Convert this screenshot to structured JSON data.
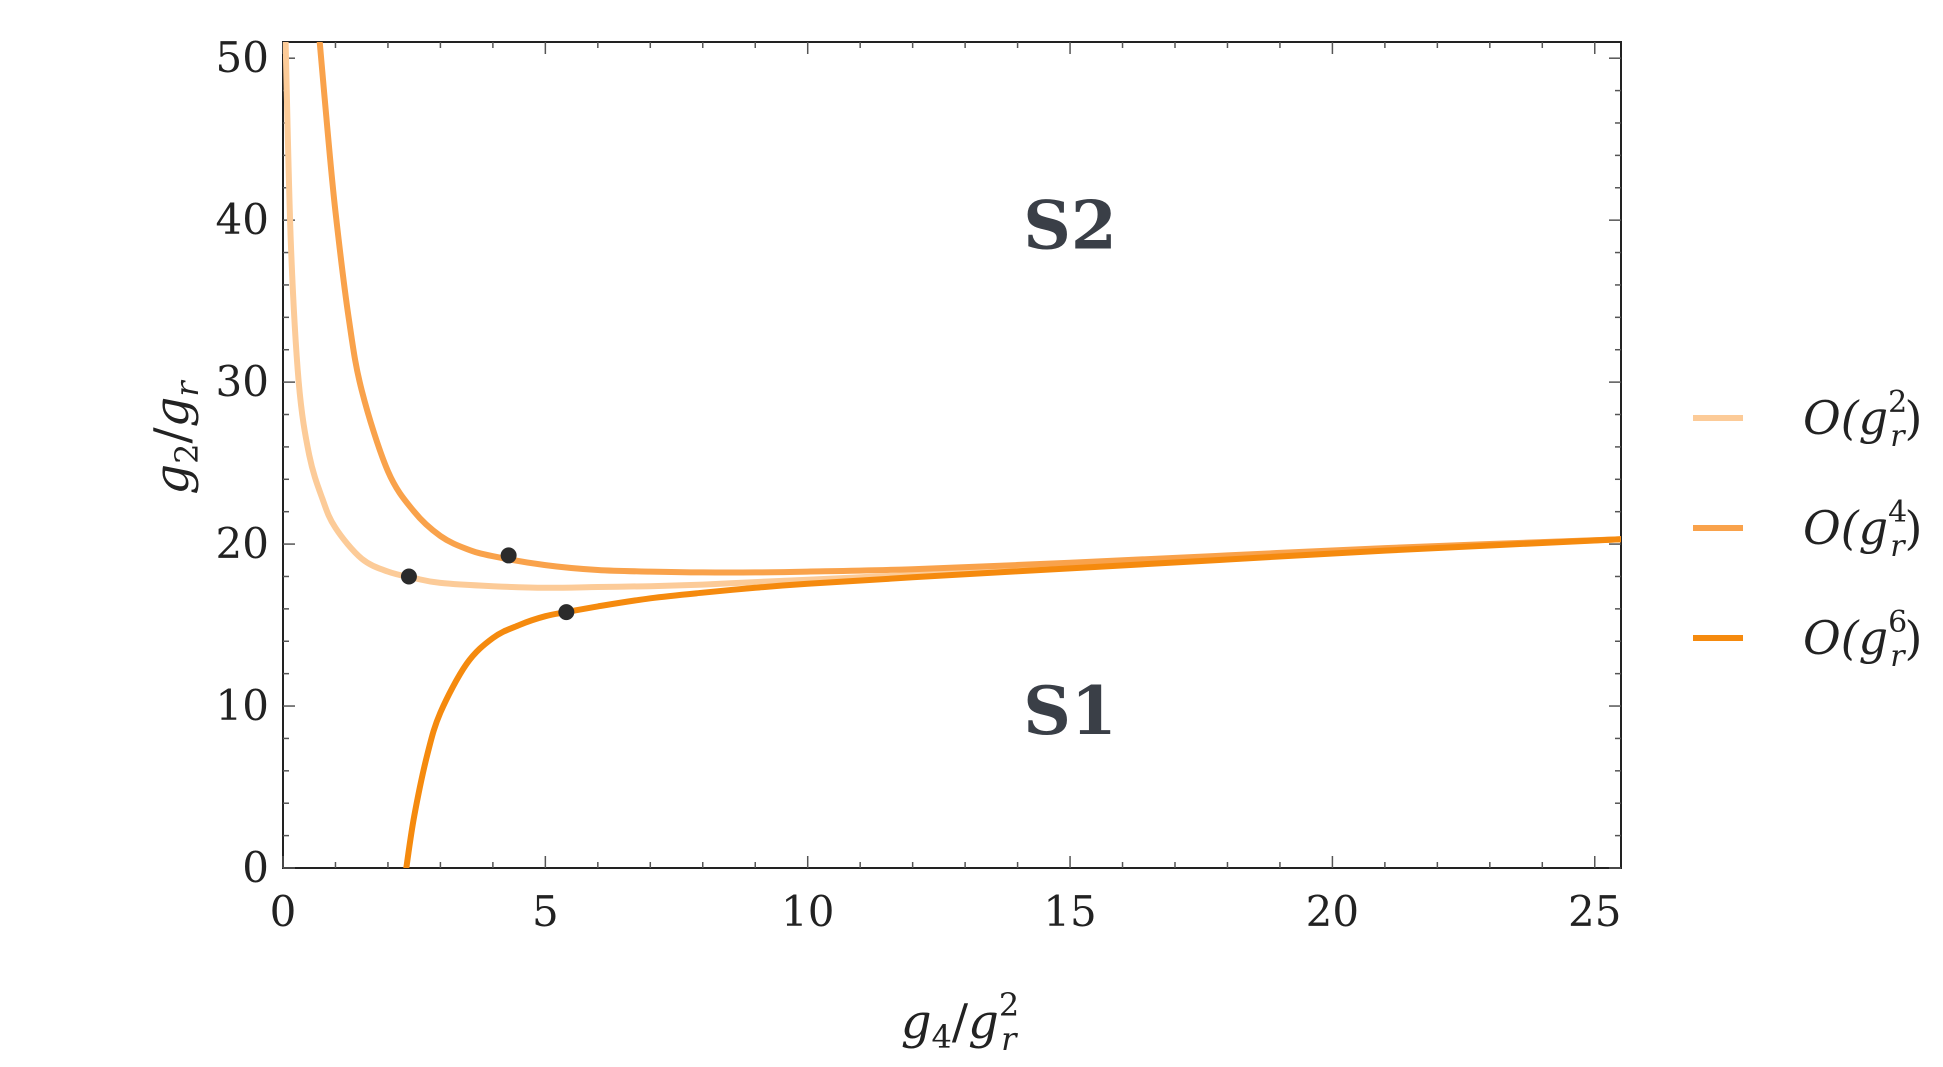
{
  "chart_data": {
    "type": "line",
    "xlabel": {
      "base": "g",
      "sub": "4",
      "sep": "/",
      "base2": "g",
      "sub2": "r",
      "sup2": "2"
    },
    "ylabel": {
      "base": "g",
      "sub": "2",
      "sep": "/",
      "base2": "g",
      "sub2": "r"
    },
    "xlim": [
      0,
      25.5
    ],
    "ylim": [
      0,
      51
    ],
    "x_ticks": [
      0,
      5,
      10,
      15,
      20,
      25
    ],
    "y_ticks": [
      0,
      10,
      20,
      30,
      40,
      50
    ],
    "grid": false,
    "legend_position": "right",
    "regions": [
      {
        "label": "S2",
        "x": 15,
        "y": 39.5
      },
      {
        "label": "S1",
        "x": 15,
        "y": 9.5
      }
    ],
    "series": [
      {
        "name": "O(g_r^2)",
        "legend": {
          "pre": "O(g",
          "sub": "r",
          "sup": "2",
          "post": ")"
        },
        "color": "#fccb98",
        "x": [
          0.05,
          0.15,
          0.3,
          0.5,
          0.75,
          1.0,
          1.5,
          2.0,
          2.5,
          3.0,
          4.0,
          5.0,
          6.0,
          7.0,
          8.0,
          9.0,
          10.0,
          12.0,
          15.0,
          18.0,
          21.0,
          25.5
        ],
        "y": [
          51,
          38.5,
          30.0,
          25.5,
          22.8,
          21.0,
          19.1,
          18.3,
          17.9,
          17.6,
          17.4,
          17.3,
          17.35,
          17.4,
          17.5,
          17.65,
          17.8,
          18.1,
          18.65,
          19.2,
          19.7,
          20.3
        ],
        "marker": {
          "x": 2.4,
          "y": 18.0
        }
      },
      {
        "name": "O(g_r^4)",
        "legend": {
          "pre": "O(g",
          "sub": "r",
          "sup": "4",
          "post": ")"
        },
        "color": "#f9a24b",
        "x": [
          0.7,
          0.85,
          1.0,
          1.25,
          1.5,
          2.0,
          2.5,
          3.0,
          3.5,
          4.0,
          5.0,
          6.0,
          7.0,
          8.0,
          9.0,
          10.0,
          12.0,
          15.0,
          18.0,
          21.0,
          25.5
        ],
        "y": [
          51,
          45.5,
          40.5,
          34.0,
          29.5,
          24.5,
          22.0,
          20.5,
          19.7,
          19.25,
          18.7,
          18.4,
          18.3,
          18.25,
          18.25,
          18.3,
          18.45,
          18.85,
          19.3,
          19.75,
          20.3
        ],
        "marker": {
          "x": 4.3,
          "y": 19.3
        }
      },
      {
        "name": "O(g_r^6)",
        "legend": {
          "pre": "O(g",
          "sub": "r",
          "sup": "6",
          "post": ")"
        },
        "color": "#f58a0e",
        "x": [
          2.35,
          2.5,
          2.75,
          3.0,
          3.5,
          4.0,
          4.5,
          5.0,
          5.4,
          6.0,
          7.0,
          8.0,
          9.0,
          10.0,
          12.0,
          15.0,
          18.0,
          21.0,
          25.5
        ],
        "y": [
          0,
          3.2,
          7.0,
          9.6,
          12.6,
          14.2,
          15.0,
          15.55,
          15.8,
          16.15,
          16.65,
          17.0,
          17.3,
          17.55,
          17.95,
          18.5,
          19.05,
          19.6,
          20.3
        ],
        "marker": {
          "x": 5.4,
          "y": 15.8
        }
      }
    ]
  }
}
